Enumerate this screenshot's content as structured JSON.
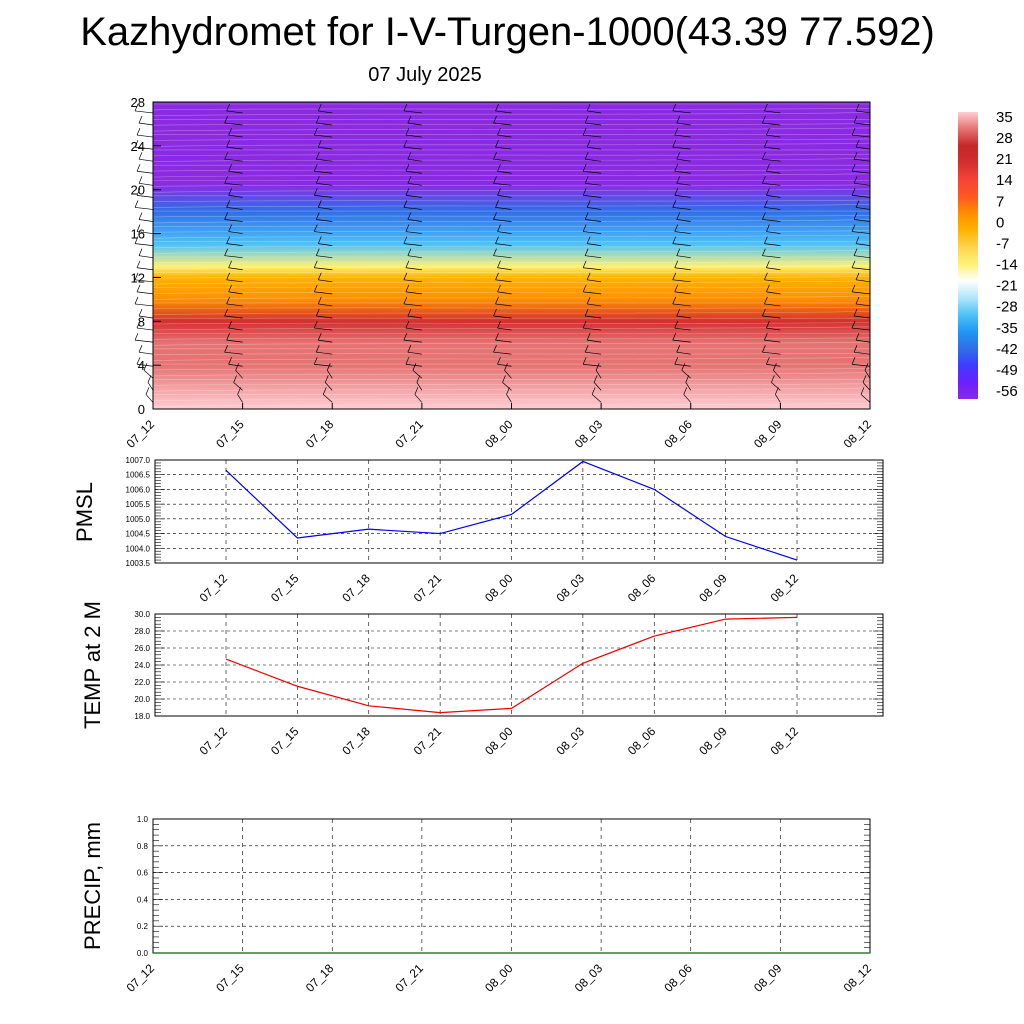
{
  "title": "Kazhydromet for I-V-Turgen-1000(43.39 77.592)",
  "subtitle": "07 July 2025",
  "colors": {
    "pmsl_line": "#0000ee",
    "temp_line": "#ee0000",
    "precip_line": "#2e7d32",
    "colorbar": [
      "#8a2be2",
      "#6a1fff",
      "#3d3dff",
      "#2f6fe8",
      "#2196f3",
      "#4fc3f7",
      "#b3e5fc",
      "#ffffff",
      "#fff176",
      "#ffd54f",
      "#ffb300",
      "#ff8f00",
      "#ff5722",
      "#f44336",
      "#d32f2f",
      "#c62828",
      "#e57373",
      "#ffcdd2"
    ]
  },
  "chart_data": [
    {
      "type": "heatmap",
      "x": [
        "07_12",
        "07_15",
        "07_18",
        "07_21",
        "08_00",
        "08_03",
        "08_06",
        "08_09",
        "08_12"
      ],
      "ylim": [
        0,
        28
      ],
      "yticks": [
        "0",
        "4",
        "8",
        "12",
        "16",
        "20",
        "24",
        "28"
      ],
      "colorbar_labels": [
        "35",
        "28",
        "21",
        "14",
        "7",
        "0",
        "-7",
        "-14",
        "-21",
        "-28",
        "-35",
        "-42",
        "-49",
        "-56"
      ],
      "colorbar_range": [
        -60,
        38
      ],
      "profile": [
        {
          "level": 0,
          "value": 33
        },
        {
          "level": 4,
          "value": 31
        },
        {
          "level": 6,
          "value": 28
        },
        {
          "level": 8,
          "value": 18
        },
        {
          "level": 10,
          "value": 5
        },
        {
          "level": 12,
          "value": -5
        },
        {
          "level": 13,
          "value": -14
        },
        {
          "level": 15,
          "value": -28
        },
        {
          "level": 18,
          "value": -40
        },
        {
          "level": 20.5,
          "value": -56
        },
        {
          "level": 23,
          "value": -60
        },
        {
          "level": 28,
          "value": -60
        }
      ],
      "wind_barbs": "black barbs at each time step"
    },
    {
      "type": "line",
      "ylabel": "PMSL",
      "x": [
        "07_12",
        "07_15",
        "07_18",
        "07_21",
        "08_00",
        "08_03",
        "08_06",
        "08_09",
        "08_12"
      ],
      "yticks": [
        "1003.5",
        "1004.0",
        "1004.5",
        "1005.0",
        "1005.5",
        "1006.0",
        "1006.5",
        "1007.0"
      ],
      "ylim": [
        1003.5,
        1007.0
      ],
      "series": [
        {
          "values": [
            1006.65,
            1004.35,
            1004.65,
            1004.5,
            1005.15,
            1006.95,
            1006.0,
            1004.4,
            1003.6
          ]
        }
      ]
    },
    {
      "type": "line",
      "ylabel": "TEMP at 2 M",
      "x": [
        "07_12",
        "07_15",
        "07_18",
        "07_21",
        "08_00",
        "08_03",
        "08_06",
        "08_09",
        "08_12"
      ],
      "yticks": [
        "18.0",
        "20.0",
        "22.0",
        "24.0",
        "26.0",
        "28.0",
        "30.0"
      ],
      "ylim": [
        18.0,
        30.0
      ],
      "series": [
        {
          "values": [
            24.7,
            21.5,
            19.2,
            18.4,
            18.9,
            24.2,
            27.4,
            29.4,
            29.6
          ]
        }
      ]
    },
    {
      "type": "line",
      "ylabel": "PRECIP, mm",
      "x": [
        "07_12",
        "07_15",
        "07_18",
        "07_21",
        "08_00",
        "08_03",
        "08_06",
        "08_09",
        "08_12"
      ],
      "yticks": [
        "0.0",
        "0.2",
        "0.4",
        "0.6",
        "0.8",
        "1.0"
      ],
      "ylim": [
        0.0,
        1.0
      ],
      "series": [
        {
          "values": [
            0,
            0,
            0,
            0,
            0,
            0,
            0,
            0,
            0
          ]
        }
      ]
    }
  ]
}
